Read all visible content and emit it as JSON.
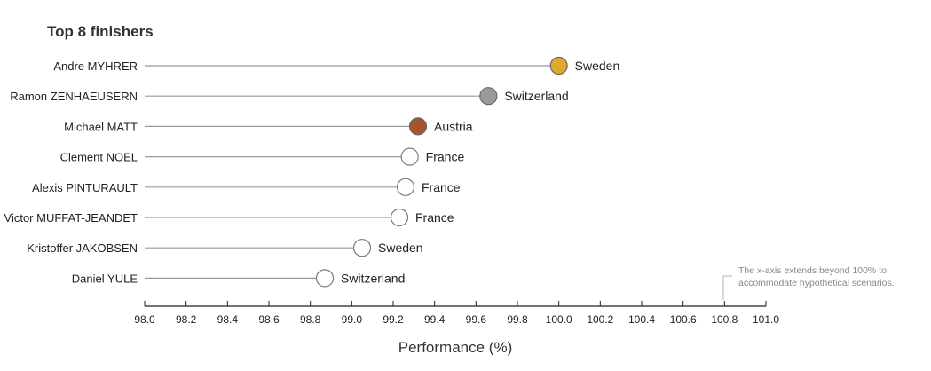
{
  "chart_data": {
    "type": "dot",
    "title": "Top 8 finishers",
    "xlabel": "Performance (%)",
    "xlim": [
      98.0,
      101.0
    ],
    "xticks": [
      "98.0",
      "98.2",
      "98.4",
      "98.6",
      "98.8",
      "99.0",
      "99.2",
      "99.4",
      "99.6",
      "99.8",
      "100.0",
      "100.2",
      "100.4",
      "100.6",
      "100.8",
      "101.0"
    ],
    "annotation": [
      "The x-axis extends beyond 100% to",
      "accommodate hypothetical scenarios."
    ],
    "points": [
      {
        "name": "Andre MYHRER",
        "country": "Sweden",
        "value": 100.0,
        "medal": "gold"
      },
      {
        "name": "Ramon ZENHAEUSERN",
        "country": "Switzerland",
        "value": 99.66,
        "medal": "silver"
      },
      {
        "name": "Michael MATT",
        "country": "Austria",
        "value": 99.32,
        "medal": "bronze"
      },
      {
        "name": "Clement NOEL",
        "country": "France",
        "value": 99.28,
        "medal": "none"
      },
      {
        "name": "Alexis PINTURAULT",
        "country": "France",
        "value": 99.26,
        "medal": "none"
      },
      {
        "name": "Victor MUFFAT-JEANDET",
        "country": "France",
        "value": 99.23,
        "medal": "none"
      },
      {
        "name": "Kristoffer JAKOBSEN",
        "country": "Sweden",
        "value": 99.05,
        "medal": "none"
      },
      {
        "name": "Daniel YULE",
        "country": "Switzerland",
        "value": 98.87,
        "medal": "none"
      }
    ],
    "colors": {
      "gold": "#e0a92b",
      "silver": "#9a9a9a",
      "bronze": "#a5552a",
      "none": "#ffffff",
      "line": "#9a9a9a",
      "axis": "#222222"
    }
  }
}
